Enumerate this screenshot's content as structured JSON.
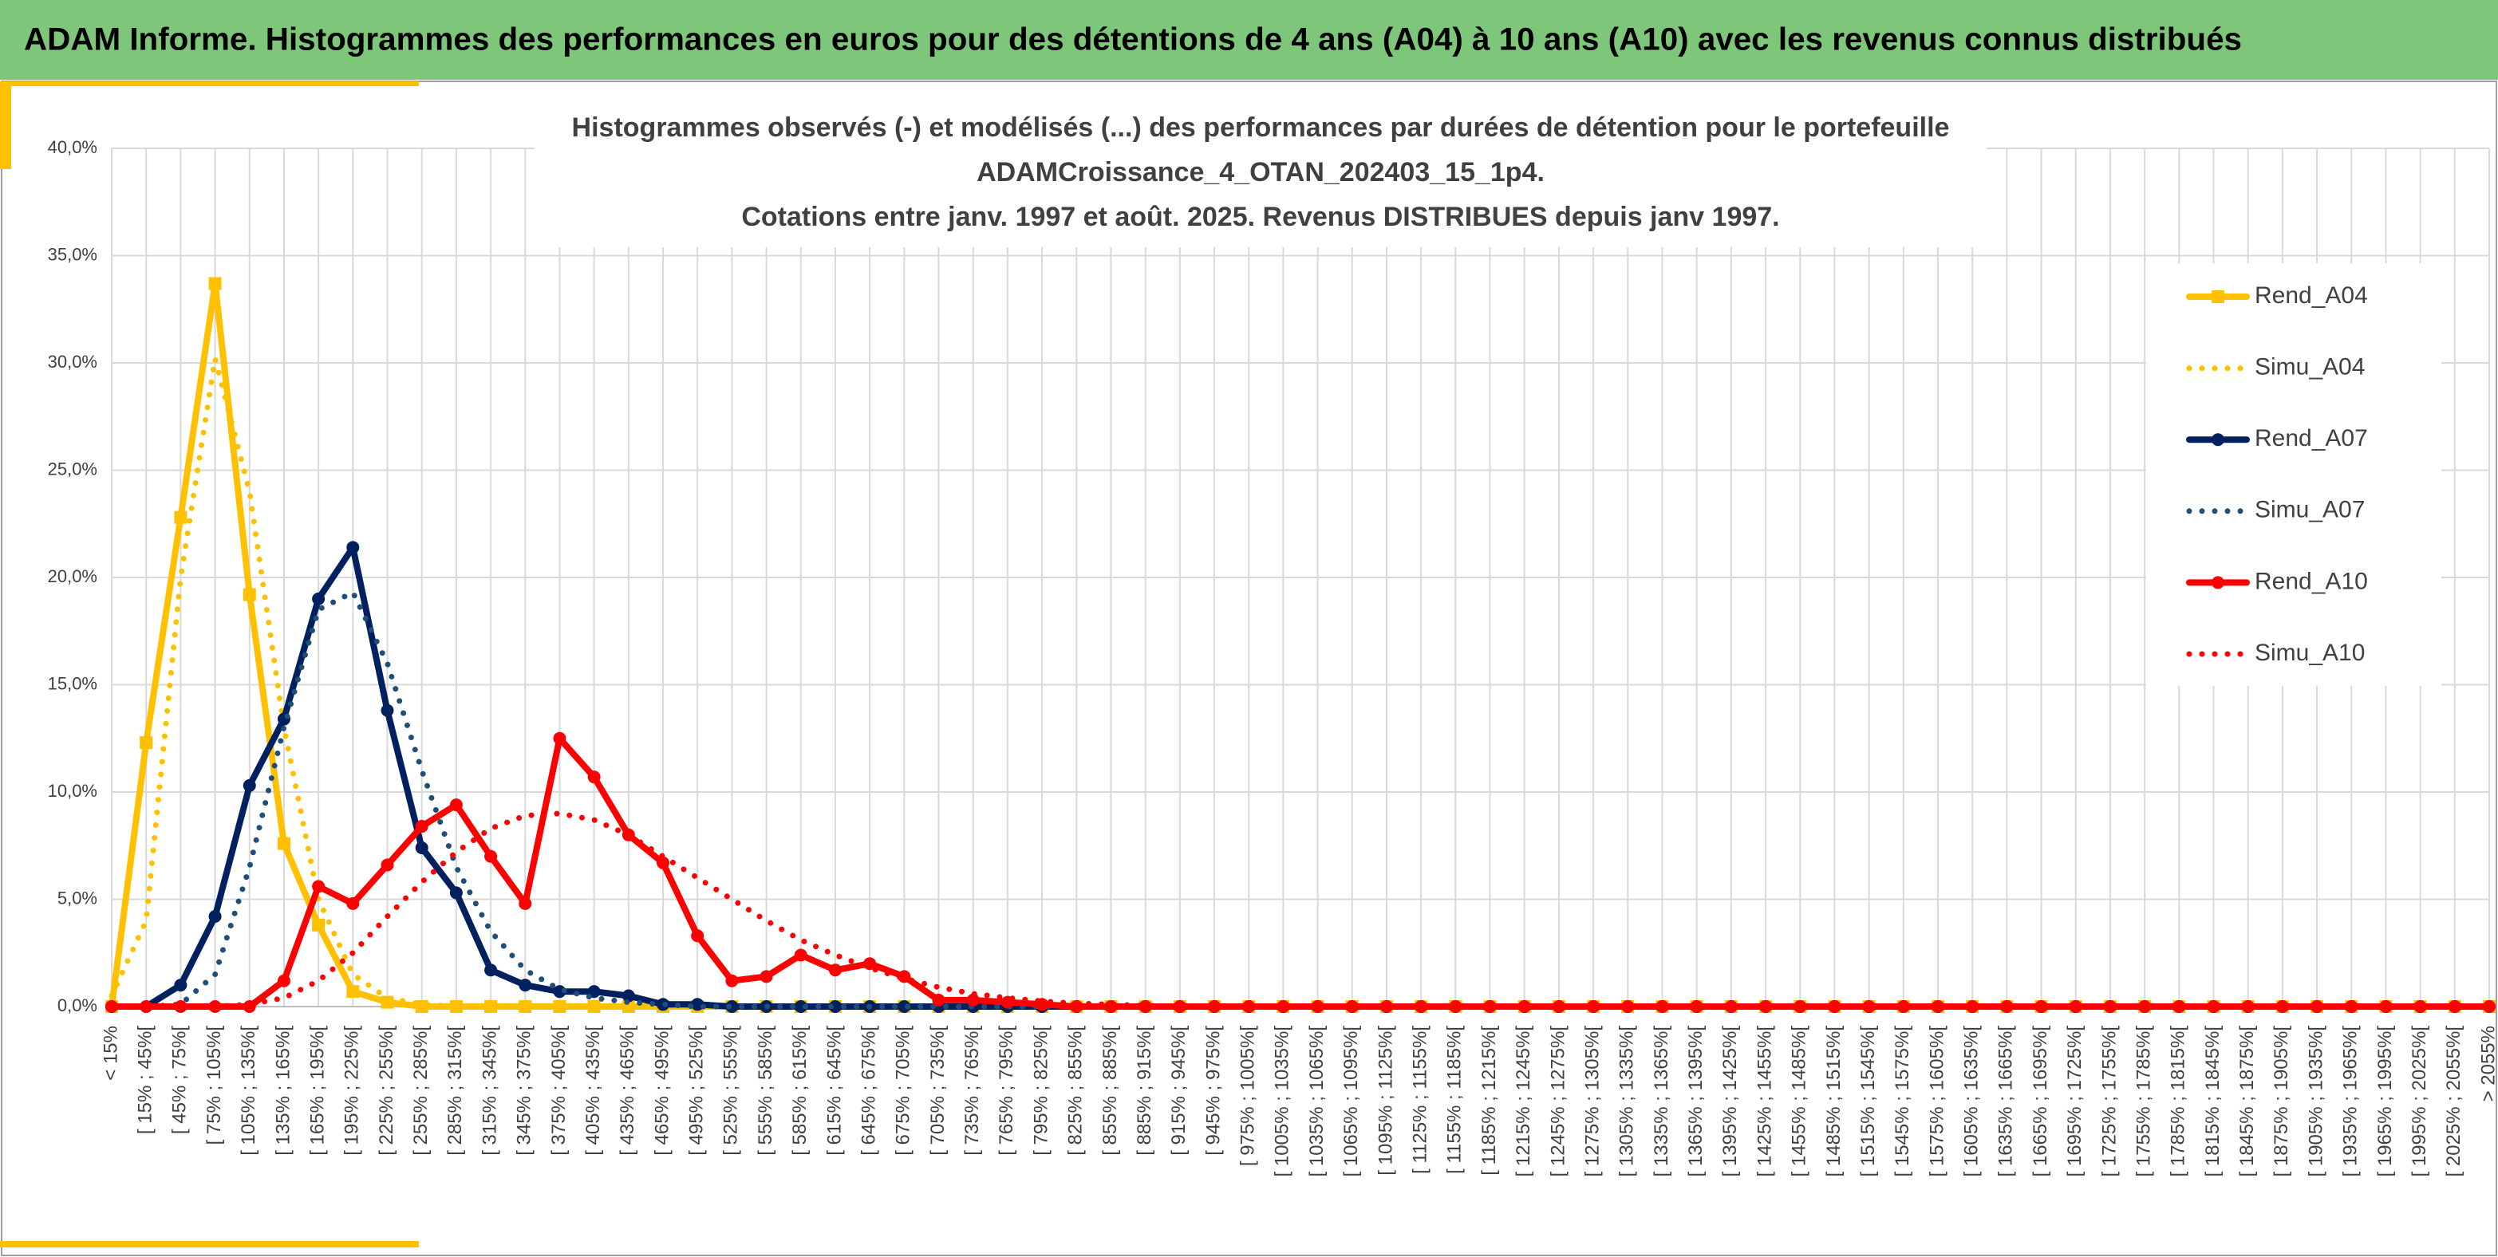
{
  "header": {
    "title": "ADAM Informe. Histogrammes des performances en euros pour des détentions de 4 ans (A04) à 10 ans (A10) avec les revenus connus distribués"
  },
  "chart_data": {
    "type": "line",
    "title": [
      "Histogrammes observés (-) et modélisés (...) des performances par durées de détention pour le portefeuille",
      "ADAMCroissance_4_OTAN_202403_15_1p4.",
      "Cotations entre janv. 1997 et août. 2025. Revenus DISTRIBUES depuis janv 1997."
    ],
    "categories": [
      "< 15%",
      "[ 15% ; 45%[",
      "[ 45% ; 75%[",
      "[ 75% ; 105%[",
      "[ 105% ; 135%[",
      "[ 135% ; 165%[",
      "[ 165% ; 195%[",
      "[ 195% ; 225%[",
      "[ 225% ; 255%[",
      "[ 255% ; 285%[",
      "[ 285% ; 315%[",
      "[ 315% ; 345%[",
      "[ 345% ; 375%[",
      "[ 375% ; 405%[",
      "[ 405% ; 435%[",
      "[ 435% ; 465%[",
      "[ 465% ; 495%[",
      "[ 495% ; 525%[",
      "[ 525% ; 555%[",
      "[ 555% ; 585%[",
      "[ 585% ; 615%[",
      "[ 615% ; 645%[",
      "[ 645% ; 675%[",
      "[ 675% ; 705%[",
      "[ 705% ; 735%[",
      "[ 735% ; 765%[",
      "[ 765% ; 795%[",
      "[ 795% ; 825%[",
      "[ 825% ; 855%[",
      "[ 855% ; 885%[",
      "[ 885% ; 915%[",
      "[ 915% ; 945%[",
      "[ 945% ; 975%[",
      "[ 975% ; 1005%[",
      "[ 1005% ; 1035%[",
      "[ 1035% ; 1065%[",
      "[ 1065% ; 1095%[",
      "[ 1095% ; 1125%[",
      "[ 1125% ; 1155%[",
      "[ 1155% ; 1185%[",
      "[ 1185% ; 1215%[",
      "[ 1215% ; 1245%[",
      "[ 1245% ; 1275%[",
      "[ 1275% ; 1305%[",
      "[ 1305% ; 1335%[",
      "[ 1335% ; 1365%[",
      "[ 1365% ; 1395%[",
      "[ 1395% ; 1425%[",
      "[ 1425% ; 1455%[",
      "[ 1455% ; 1485%[",
      "[ 1485% ; 1515%[",
      "[ 1515% ; 1545%[",
      "[ 1545% ; 1575%[",
      "[ 1575% ; 1605%[",
      "[ 1605% ; 1635%[",
      "[ 1635% ; 1665%[",
      "[ 1665% ; 1695%[",
      "[ 1695% ; 1725%[",
      "[ 1725% ; 1755%[",
      "[ 1755% ; 1785%[",
      "[ 1785% ; 1815%[",
      "[ 1815% ; 1845%[",
      "[ 1845% ; 1875%[",
      "[ 1875% ; 1905%[",
      "[ 1905% ; 1935%[",
      "[ 1935% ; 1965%[",
      "[ 1965% ; 1995%[",
      "[ 1995% ; 2025%[",
      "[ 2025% ; 2055%[",
      "> 2055%"
    ],
    "series": [
      {
        "name": "Rend_A04",
        "color": "#FFC000",
        "style": "solid",
        "marker": "square",
        "values": [
          0,
          12.3,
          22.8,
          33.7,
          19.2,
          7.6,
          3.8,
          0.7,
          0.2,
          0,
          0,
          0,
          0,
          0,
          0,
          0,
          0,
          0,
          0,
          0,
          0,
          0,
          0,
          0,
          0,
          0,
          0,
          0,
          0,
          0,
          0,
          0,
          0,
          0,
          0,
          0,
          0,
          0,
          0,
          0,
          0,
          0,
          0,
          0,
          0,
          0,
          0,
          0,
          0,
          0,
          0,
          0,
          0,
          0,
          0,
          0,
          0,
          0,
          0,
          0,
          0,
          0,
          0,
          0,
          0,
          0,
          0,
          0,
          0,
          0
        ]
      },
      {
        "name": "Simu_A04",
        "color": "#FFC000",
        "style": "dotted",
        "values": [
          0.5,
          4,
          20,
          30.2,
          24,
          13,
          5,
          1.5,
          0.4,
          0.1,
          0,
          0,
          0,
          0,
          0,
          0,
          0,
          0,
          0,
          0,
          0,
          0,
          0,
          0,
          0,
          0,
          0,
          0,
          0,
          0,
          0,
          0,
          0,
          0,
          0,
          0,
          0,
          0,
          0,
          0,
          0,
          0,
          0,
          0,
          0,
          0,
          0,
          0,
          0,
          0,
          0,
          0,
          0,
          0,
          0,
          0,
          0,
          0,
          0,
          0,
          0,
          0,
          0,
          0,
          0,
          0,
          0,
          0,
          0,
          0
        ]
      },
      {
        "name": "Rend_A07",
        "color": "#002060",
        "style": "solid",
        "marker": "circle",
        "values": [
          0,
          0,
          1.0,
          4.2,
          10.3,
          13.4,
          19.0,
          21.4,
          13.8,
          7.4,
          5.3,
          1.7,
          1.0,
          0.7,
          0.7,
          0.5,
          0.1,
          0.1,
          0,
          0,
          0,
          0,
          0,
          0,
          0,
          0,
          0,
          0,
          0,
          0,
          0,
          0,
          0,
          0,
          0,
          0,
          0,
          0,
          0,
          0,
          0,
          0,
          0,
          0,
          0,
          0,
          0,
          0,
          0,
          0,
          0,
          0,
          0,
          0,
          0,
          0,
          0,
          0,
          0,
          0,
          0,
          0,
          0,
          0,
          0,
          0,
          0,
          0,
          0,
          0
        ]
      },
      {
        "name": "Simu_A07",
        "color": "#1F4E79",
        "style": "dotted",
        "values": [
          0,
          0,
          0.1,
          1.5,
          6.5,
          13,
          18.5,
          19.3,
          16,
          11,
          6.5,
          3.5,
          1.7,
          0.8,
          0.4,
          0.2,
          0.1,
          0,
          0,
          0,
          0,
          0,
          0,
          0,
          0,
          0,
          0,
          0,
          0,
          0,
          0,
          0,
          0,
          0,
          0,
          0,
          0,
          0,
          0,
          0,
          0,
          0,
          0,
          0,
          0,
          0,
          0,
          0,
          0,
          0,
          0,
          0,
          0,
          0,
          0,
          0,
          0,
          0,
          0,
          0,
          0,
          0,
          0,
          0,
          0,
          0,
          0,
          0,
          0,
          0
        ]
      },
      {
        "name": "Rend_A10",
        "color": "#FF0000",
        "style": "solid",
        "marker": "circle",
        "values": [
          0,
          0,
          0,
          0,
          0,
          1.2,
          5.6,
          4.8,
          6.6,
          8.4,
          9.4,
          7.0,
          4.8,
          12.5,
          10.7,
          8.0,
          6.7,
          3.3,
          1.2,
          1.4,
          2.4,
          1.7,
          2.0,
          1.4,
          0.3,
          0.3,
          0.2,
          0.1,
          0,
          0,
          0,
          0,
          0,
          0,
          0,
          0,
          0,
          0,
          0,
          0,
          0,
          0,
          0,
          0,
          0,
          0,
          0,
          0,
          0,
          0,
          0,
          0,
          0,
          0,
          0,
          0,
          0,
          0,
          0,
          0,
          0,
          0,
          0,
          0,
          0,
          0,
          0,
          0,
          0,
          0
        ]
      },
      {
        "name": "Simu_A10",
        "color": "#FF0000",
        "style": "dotted",
        "values": [
          0,
          0,
          0,
          0,
          0.1,
          0.4,
          1.2,
          2.5,
          4.2,
          5.8,
          7.2,
          8.3,
          8.9,
          9.0,
          8.7,
          8.0,
          7.0,
          6.0,
          5.0,
          4.0,
          3.1,
          2.4,
          1.8,
          1.3,
          0.9,
          0.6,
          0.4,
          0.25,
          0.15,
          0.1,
          0.05,
          0,
          0,
          0,
          0,
          0,
          0,
          0,
          0,
          0,
          0,
          0,
          0,
          0,
          0,
          0,
          0,
          0,
          0,
          0,
          0,
          0,
          0,
          0,
          0,
          0,
          0,
          0,
          0,
          0,
          0,
          0,
          0,
          0,
          0,
          0,
          0,
          0,
          0,
          0
        ]
      }
    ],
    "ylim": [
      0,
      40
    ],
    "yticks": [
      {
        "value": 0,
        "label": "0,0%"
      },
      {
        "value": 5,
        "label": "5,0%"
      },
      {
        "value": 10,
        "label": "10,0%"
      },
      {
        "value": 15,
        "label": "15,0%"
      },
      {
        "value": 20,
        "label": "20,0%"
      },
      {
        "value": 25,
        "label": "25,0%"
      },
      {
        "value": 30,
        "label": "30,0%"
      },
      {
        "value": 35,
        "label": "35,0%"
      },
      {
        "value": 40,
        "label": "40,0%"
      }
    ],
    "grid": true,
    "legend": "right"
  }
}
